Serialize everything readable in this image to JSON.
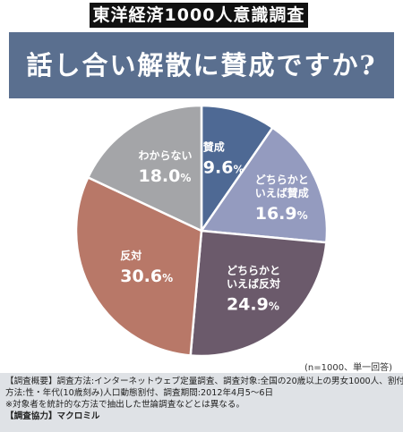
{
  "header": {
    "tag": "東洋経済1000人意識調査",
    "title": "話し合い解散に賛成ですか?"
  },
  "colors": {
    "banner": "#5a6f8f",
    "tag_bg": "#111111",
    "footer_bg": "#dfe2e6"
  },
  "chart_data": {
    "type": "pie",
    "title": "話し合い解散に賛成ですか?",
    "slices": [
      {
        "label": [
          "賛成"
        ],
        "value": 9.6,
        "display": "9.6",
        "color": "#4e6994"
      },
      {
        "label": [
          "どちらかと",
          "いえば賛成"
        ],
        "value": 16.9,
        "display": "16.9",
        "color": "#949bbf"
      },
      {
        "label": [
          "どちらかと",
          "いえば反対"
        ],
        "value": 24.9,
        "display": "24.9",
        "color": "#6b5a6b"
      },
      {
        "label": [
          "反対"
        ],
        "value": 30.6,
        "display": "30.6",
        "color": "#b87868"
      },
      {
        "label": [
          "わからない"
        ],
        "value": 18.0,
        "display": "18.0",
        "color": "#a4a5a8"
      }
    ],
    "unit": "%"
  },
  "note": "(n=1000、単一回答)",
  "footer": {
    "line1": "【調査概要】調査方法:インターネットウェブ定量調査、調査対象:全国の20歳以上の男女1000人、割付",
    "line2": "方法:性・年代(10歳刻み)人口動態割付、調査期間:2012年4月5〜6日",
    "line3": "※対象者を統計的な方法で抽出した世論調査などとは異なる。",
    "credit": "【調査協力】マクロミル"
  }
}
